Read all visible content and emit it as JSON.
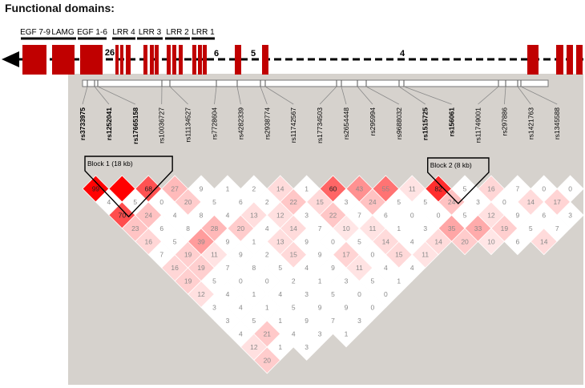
{
  "title": "Functional domains:",
  "domains": [
    {
      "label": "EGF 7-9"
    },
    {
      "label": "LAMG"
    },
    {
      "label": "EGF 1-6"
    },
    {
      "label": "LRR 4"
    },
    {
      "label": "LRR 3"
    },
    {
      "label": "LRR 2"
    },
    {
      "label": "LRR 1"
    }
  ],
  "exon_numbers": [
    "26",
    "6",
    "5",
    "4"
  ],
  "snps": [
    {
      "id": "rs3733975",
      "bold": true
    },
    {
      "id": "rs1252041",
      "bold": true
    },
    {
      "id": "rs17665158",
      "bold": true
    },
    {
      "id": "rs10036727",
      "bold": false
    },
    {
      "id": "rs11134527",
      "bold": false
    },
    {
      "id": "rs7728604",
      "bold": false
    },
    {
      "id": "rs4282339",
      "bold": false
    },
    {
      "id": "rs2938774",
      "bold": false
    },
    {
      "id": "rs11742567",
      "bold": false
    },
    {
      "id": "rs17734503",
      "bold": false
    },
    {
      "id": "rs2654448",
      "bold": false
    },
    {
      "id": "rs295994",
      "bold": false
    },
    {
      "id": "rs9688032",
      "bold": false
    },
    {
      "id": "rs1515725",
      "bold": true
    },
    {
      "id": "rs156061",
      "bold": true
    },
    {
      "id": "rs11749001",
      "bold": false
    },
    {
      "id": "rs297886",
      "bold": false
    },
    {
      "id": "rs1421763",
      "bold": false
    },
    {
      "id": "rs1345588",
      "bold": false
    }
  ],
  "blocks": [
    {
      "label": "Block 1 (18 kb)",
      "from": 0,
      "to": 2
    },
    {
      "label": "Block 2 (8 kb)",
      "from": 13,
      "to": 14
    }
  ],
  "ld_values": [
    [
      99,
      4,
      70,
      23,
      16,
      7,
      16,
      19,
      12,
      3,
      3,
      4,
      12,
      20
    ],
    [
      null,
      5,
      24,
      6,
      5,
      19,
      19,
      5,
      4,
      4,
      5,
      21,
      1
    ],
    [
      68,
      0,
      4,
      8,
      39,
      11,
      7,
      0,
      1,
      1,
      1,
      4,
      3
    ],
    [
      27,
      20,
      8,
      28,
      9,
      9,
      8,
      0,
      4,
      5,
      9,
      3
    ],
    [
      9,
      5,
      4,
      20,
      1,
      2,
      5,
      2,
      3,
      9,
      7,
      1
    ],
    [
      1,
      6,
      13,
      4,
      13,
      15,
      4,
      1,
      5,
      9,
      3
    ],
    [
      2,
      2,
      12,
      14,
      9,
      9,
      9,
      3,
      0,
      0
    ],
    [
      14,
      22,
      3,
      7,
      0,
      17,
      11,
      5,
      0
    ],
    [
      1,
      15,
      22,
      10,
      5,
      0,
      4,
      1
    ],
    [
      60,
      3,
      7,
      11,
      14,
      15,
      4
    ],
    [
      43,
      24,
      6,
      1,
      4,
      11
    ],
    [
      55,
      5,
      0,
      3,
      14
    ],
    [
      11,
      5,
      0,
      35,
      20
    ],
    [
      82,
      24,
      5,
      33,
      10
    ],
    [
      5,
      3,
      12,
      19,
      6
    ],
    [
      16,
      0,
      9,
      5,
      14
    ],
    [
      7,
      14,
      6,
      7
    ],
    [
      0,
      17,
      3
    ],
    [
      0
    ]
  ],
  "colors": {
    "exon": "#c00000",
    "grey_box": "#d6d2cd",
    "ld_max": "#e00000"
  }
}
